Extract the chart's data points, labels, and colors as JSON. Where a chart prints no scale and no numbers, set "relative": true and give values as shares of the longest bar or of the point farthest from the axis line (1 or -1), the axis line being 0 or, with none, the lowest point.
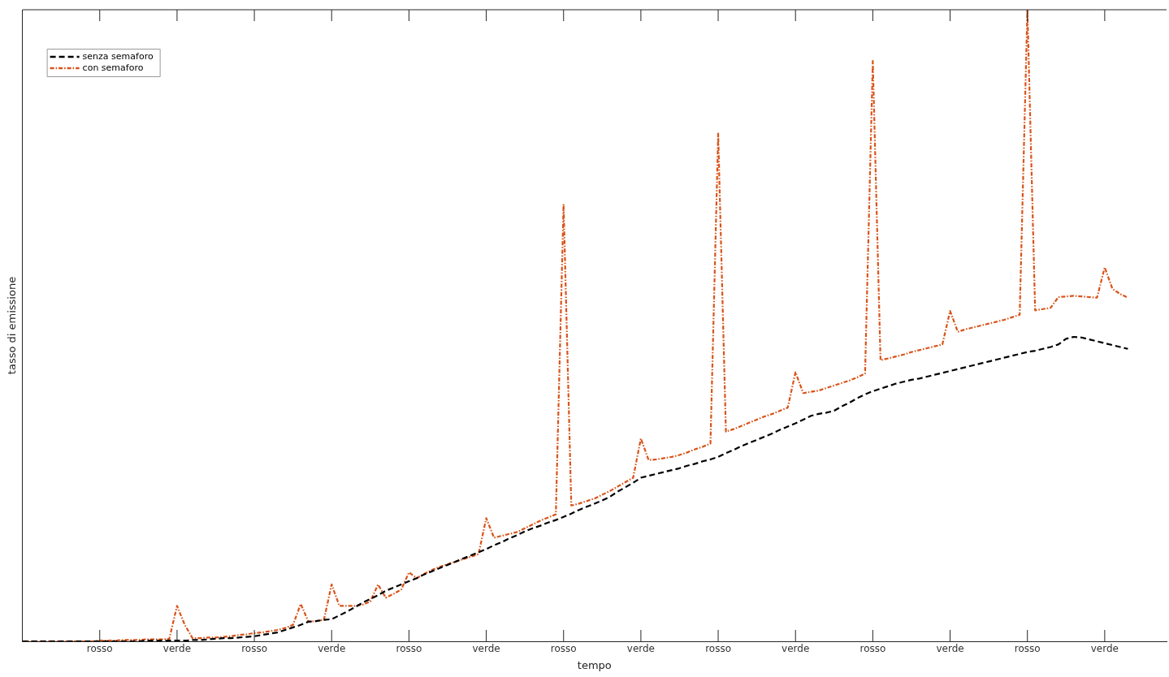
{
  "chart_data": {
    "type": "line",
    "xlabel": "tempo",
    "ylabel": "tasso di emissione",
    "relative": true,
    "categories": [
      null,
      null,
      null,
      null,
      null,
      null,
      null,
      null,
      null,
      null,
      "rosso",
      null,
      null,
      null,
      null,
      null,
      null,
      null,
      null,
      null,
      "verde",
      null,
      null,
      null,
      null,
      null,
      null,
      null,
      null,
      null,
      "rosso",
      null,
      null,
      null,
      null,
      null,
      null,
      null,
      null,
      null,
      "verde",
      null,
      null,
      null,
      null,
      null,
      null,
      null,
      null,
      null,
      "rosso",
      null,
      null,
      null,
      null,
      null,
      null,
      null,
      null,
      null,
      "verde",
      null,
      null,
      null,
      null,
      null,
      null,
      null,
      null,
      null,
      "rosso",
      null,
      null,
      null,
      null,
      null,
      null,
      null,
      null,
      null,
      "verde",
      null,
      null,
      null,
      null,
      null,
      null,
      null,
      null,
      null,
      "rosso",
      null,
      null,
      null,
      null,
      null,
      null,
      null,
      null,
      null,
      "verde",
      null,
      null,
      null,
      null,
      null,
      null,
      null,
      null,
      null,
      "rosso",
      null,
      null,
      null,
      null,
      null,
      null,
      null,
      null,
      null,
      "verde",
      null,
      null,
      null,
      null,
      null,
      null,
      null,
      null,
      null,
      "rosso",
      null,
      null,
      null,
      null,
      null,
      null,
      null,
      null,
      null,
      "verde",
      null,
      null,
      null,
      null,
      null,
      null,
      null,
      null
    ],
    "legend": "top left",
    "marker": "none",
    "line_style": "dashed",
    "series": [
      {
        "name": "senza semaforo",
        "color": "#000000",
        "values": [
          0,
          0,
          0,
          0,
          0,
          0,
          0,
          0,
          0,
          0,
          0,
          0,
          0,
          0,
          0,
          0,
          0.001,
          0.001,
          0.001,
          0.001,
          0.001,
          0.001,
          0.002,
          0.002,
          0.003,
          0.004,
          0.005,
          0.005,
          0.006,
          0.007,
          0.008,
          0.01,
          0.012,
          0.014,
          0.018,
          0.022,
          0.026,
          0.031,
          0.032,
          0.034,
          0.035,
          0.041,
          0.047,
          0.054,
          0.061,
          0.067,
          0.073,
          0.08,
          0.085,
          0.09,
          0.095,
          0.1,
          0.106,
          0.111,
          0.116,
          0.121,
          0.126,
          0.131,
          0.136,
          0.141,
          0.146,
          0.152,
          0.157,
          0.163,
          0.168,
          0.174,
          0.179,
          0.183,
          0.188,
          0.192,
          0.197,
          0.202,
          0.208,
          0.213,
          0.218,
          0.223,
          0.229,
          0.237,
          0.244,
          0.251,
          0.259,
          0.262,
          0.265,
          0.268,
          0.271,
          0.274,
          0.278,
          0.281,
          0.285,
          0.288,
          0.292,
          0.298,
          0.303,
          0.309,
          0.314,
          0.319,
          0.324,
          0.329,
          0.335,
          0.34,
          0.345,
          0.351,
          0.357,
          0.36,
          0.362,
          0.365,
          0.372,
          0.378,
          0.385,
          0.391,
          0.396,
          0.4,
          0.404,
          0.408,
          0.411,
          0.414,
          0.416,
          0.419,
          0.422,
          0.425,
          0.428,
          0.431,
          0.434,
          0.437,
          0.44,
          0.443,
          0.446,
          0.449,
          0.452,
          0.455,
          0.458,
          0.46,
          0.463,
          0.466,
          0.47,
          0.479,
          0.482,
          0.481,
          0.478,
          0.475,
          0.472,
          0.469,
          0.466,
          0.463,
          null,
          null,
          null,
          null,
          null
        ]
      },
      {
        "name": "con semaforo",
        "color": "#d95319",
        "line_style": "dotted",
        "values": [
          0,
          0,
          0,
          0,
          0,
          0,
          0,
          0,
          0,
          0,
          0.001,
          0.001,
          0.001,
          0.002,
          0.002,
          0.002,
          0.003,
          0.003,
          0.003,
          0.004,
          0.056,
          0.026,
          0.005,
          0.005,
          0.006,
          0.006,
          0.007,
          0.008,
          0.01,
          0.011,
          0.013,
          0.014,
          0.016,
          0.018,
          0.021,
          0.026,
          0.059,
          0.031,
          0.032,
          0.034,
          0.09,
          0.056,
          0.056,
          0.056,
          0.058,
          0.063,
          0.09,
          0.069,
          0.075,
          0.082,
          0.109,
          0.1,
          0.107,
          0.113,
          0.118,
          0.122,
          0.126,
          0.13,
          0.134,
          0.138,
          0.195,
          0.164,
          0.167,
          0.17,
          0.173,
          0.179,
          0.185,
          0.191,
          0.196,
          0.201,
          0.692,
          0.215,
          0.218,
          0.222,
          0.226,
          0.232,
          0.238,
          0.245,
          0.252,
          0.259,
          0.321,
          0.287,
          0.288,
          0.29,
          0.292,
          0.295,
          0.299,
          0.304,
          0.308,
          0.313,
          0.804,
          0.332,
          0.336,
          0.341,
          0.346,
          0.351,
          0.356,
          0.36,
          0.365,
          0.37,
          0.426,
          0.393,
          0.395,
          0.397,
          0.401,
          0.405,
          0.409,
          0.413,
          0.418,
          0.424,
          0.919,
          0.445,
          0.448,
          0.451,
          0.454,
          0.458,
          0.461,
          0.464,
          0.467,
          0.47,
          0.523,
          0.49,
          0.494,
          0.497,
          0.5,
          0.503,
          0.506,
          0.509,
          0.513,
          0.517,
          1,
          0.524,
          0.526,
          0.528,
          0.545,
          0.546,
          0.547,
          0.546,
          0.545,
          0.544,
          0.592,
          0.558,
          0.55,
          0.544,
          null,
          null,
          null,
          null,
          null
        ]
      }
    ]
  }
}
